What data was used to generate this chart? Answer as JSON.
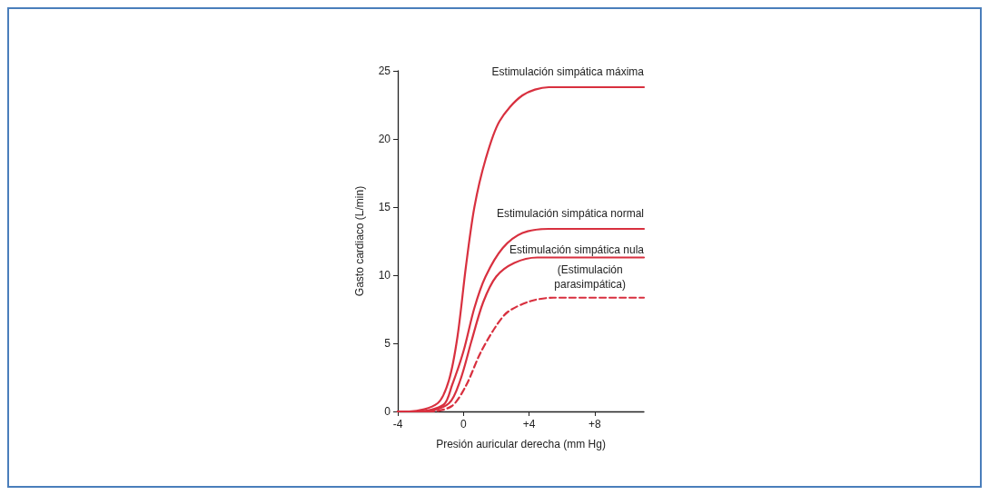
{
  "chart_data": {
    "type": "line",
    "xlabel": "Presión auricular derecha (mm Hg)",
    "ylabel": "Gasto cardiaco (L/min)",
    "xlim": [
      -4,
      11
    ],
    "xticks": [
      -4,
      0,
      {
        "value": 4,
        "label": "+4"
      },
      {
        "value": 8,
        "label": "+8"
      }
    ],
    "ylim": [
      0,
      25
    ],
    "yticks": [
      0,
      5,
      10,
      15,
      20,
      25
    ],
    "grid": false,
    "legend": false,
    "marker": "none",
    "series": [
      {
        "name": "Estimulación simpática máxima",
        "color": "#d8303f",
        "line_style": "solid",
        "x": [
          -4,
          -3.3,
          -1.57,
          -0.88,
          -0.36,
          0.16,
          0.67,
          1.35,
          2.2,
          3.6,
          5.2,
          11
        ],
        "values": [
          0,
          0,
          0.6,
          2.3,
          5.5,
          10.7,
          15,
          18.5,
          21.3,
          23.2,
          23.8,
          23.8
        ]
      },
      {
        "name": "Estimulación simpática normal",
        "color": "#d8303f",
        "line_style": "solid",
        "x": [
          -4,
          -2.8,
          -1.2,
          -0.7,
          0,
          0.67,
          1.35,
          2.4,
          3.6,
          5.2,
          11
        ],
        "values": [
          0,
          0,
          0.5,
          1.9,
          4.4,
          7.6,
          9.9,
          12,
          13.1,
          13.4,
          13.4
        ]
      },
      {
        "name": "Estimulación simpática nula",
        "color": "#d8303f",
        "line_style": "solid",
        "x": [
          -4,
          -2.4,
          -0.88,
          -0.19,
          0.5,
          1.2,
          2,
          3.1,
          4.5,
          11
        ],
        "values": [
          0,
          0,
          0.6,
          2.3,
          5.2,
          8,
          9.9,
          10.9,
          11.3,
          11.3
        ]
      },
      {
        "name": "(Estimulación parasimpática)",
        "color": "#d8303f",
        "line_style": "dashed",
        "x": [
          -4,
          -2,
          -0.7,
          0.16,
          1,
          1.9,
          2.7,
          4.1,
          5.5,
          11
        ],
        "values": [
          0,
          0,
          0.4,
          1.9,
          4.2,
          6.1,
          7.3,
          8.1,
          8.35,
          8.35
        ]
      }
    ]
  }
}
